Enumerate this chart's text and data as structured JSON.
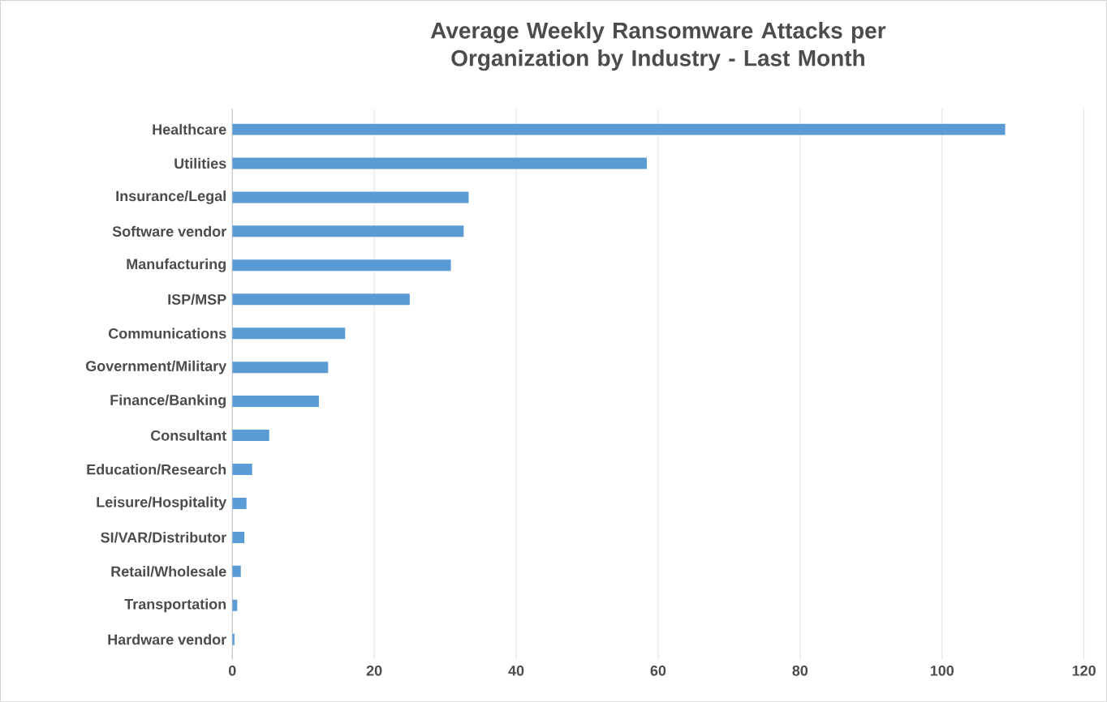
{
  "chart_data": {
    "type": "bar",
    "orientation": "horizontal",
    "title": "Average Weekly Ransomware Attacks per Organization by Industry - Last Month",
    "categories": [
      "Healthcare",
      "Utilities",
      "Insurance/Legal",
      "Software vendor",
      "Manufacturing",
      "ISP/MSP",
      "Communications",
      "Government/Military",
      "Finance/Banking",
      "Consultant",
      "Education/Research",
      "Leisure/Hospitality",
      "SI/VAR/Distributor",
      "Retail/Wholesale",
      "Transportation",
      "Hardware vendor"
    ],
    "values": [
      108.9,
      58.4,
      33.3,
      32.6,
      30.8,
      25.0,
      15.9,
      13.5,
      12.2,
      5.2,
      2.8,
      2.0,
      1.7,
      1.2,
      0.7,
      0.3
    ],
    "color": "#5b9bd5",
    "xlim": [
      0,
      120
    ],
    "xticks": [
      0,
      20,
      40,
      60,
      80,
      100,
      120
    ],
    "grid": "x"
  }
}
